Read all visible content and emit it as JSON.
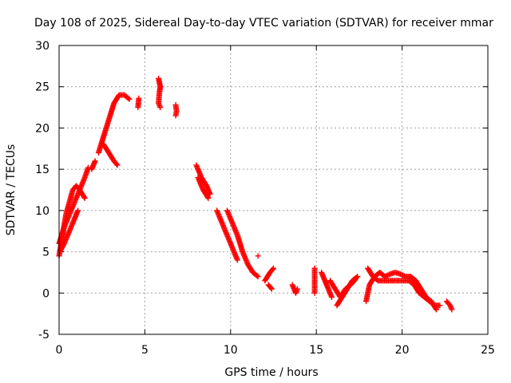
{
  "chart_data": {
    "type": "scatter",
    "title": "Day 108 of 2025, Sidereal Day-to-day VTEC variation (SDTVAR) for receiver mmar",
    "xlabel": "GPS time / hours",
    "ylabel": "SDTVAR / TECUs",
    "xlim": [
      0,
      25
    ],
    "ylim": [
      -5,
      30
    ],
    "xticks": [
      0,
      5,
      10,
      15,
      20,
      25
    ],
    "yticks": [
      -5,
      0,
      5,
      10,
      15,
      20,
      25,
      30
    ],
    "xtick_labels": [
      "0",
      "5",
      "10",
      "15",
      "20",
      "25"
    ],
    "ytick_labels": [
      "-5",
      "0",
      "5",
      "10",
      "15",
      "20",
      "25",
      "30"
    ],
    "grid": true,
    "marker": "+",
    "marker_color": "#ff0000",
    "series": [
      {
        "name": "SDTVAR",
        "segments": [
          [
            [
              0.0,
              4.5
            ],
            [
              0.2,
              7.0
            ],
            [
              0.4,
              9.5
            ],
            [
              0.6,
              11.0
            ],
            [
              0.8,
              12.5
            ],
            [
              1.0,
              13.0
            ],
            [
              1.2,
              12.5
            ],
            [
              1.5,
              11.5
            ]
          ],
          [
            [
              0.0,
              6.0
            ],
            [
              0.3,
              8.0
            ],
            [
              0.6,
              9.5
            ],
            [
              0.9,
              11.0
            ],
            [
              1.2,
              12.5
            ],
            [
              1.5,
              14.0
            ],
            [
              1.7,
              15.2
            ]
          ],
          [
            [
              0.05,
              5.0
            ],
            [
              0.3,
              6.0
            ],
            [
              0.6,
              7.5
            ],
            [
              0.9,
              9.0
            ],
            [
              1.1,
              10.0
            ]
          ],
          [
            [
              1.9,
              15.0
            ],
            [
              2.1,
              16.0
            ]
          ],
          [
            [
              2.3,
              17.0
            ],
            [
              2.6,
              19.0
            ],
            [
              2.9,
              21.0
            ],
            [
              3.2,
              23.0
            ],
            [
              3.5,
              24.0
            ],
            [
              3.8,
              24.0
            ],
            [
              4.1,
              23.5
            ]
          ],
          [
            [
              2.6,
              18.0
            ],
            [
              2.9,
              17.0
            ],
            [
              3.2,
              16.0
            ],
            [
              3.4,
              15.5
            ]
          ],
          [
            [
              4.6,
              22.5
            ],
            [
              4.65,
              23.6
            ]
          ],
          [
            [
              5.8,
              26.0
            ],
            [
              5.9,
              25.0
            ],
            [
              5.85,
              24.3
            ],
            [
              5.8,
              23.0
            ],
            [
              5.9,
              22.5
            ]
          ],
          [
            [
              6.8,
              22.8
            ],
            [
              6.85,
              22.0
            ],
            [
              6.8,
              21.5
            ]
          ],
          [
            [
              8.0,
              15.5
            ],
            [
              8.3,
              14.0
            ],
            [
              8.6,
              13.0
            ],
            [
              8.8,
              12.0
            ]
          ],
          [
            [
              8.1,
              14.0
            ],
            [
              8.4,
              12.5
            ],
            [
              8.7,
              11.5
            ]
          ],
          [
            [
              9.2,
              10.0
            ],
            [
              9.5,
              8.5
            ],
            [
              9.8,
              7.0
            ],
            [
              10.1,
              5.5
            ],
            [
              10.4,
              4.0
            ]
          ],
          [
            [
              9.8,
              10.0
            ],
            [
              10.1,
              8.5
            ],
            [
              10.4,
              7.0
            ],
            [
              10.7,
              5.0
            ],
            [
              11.0,
              3.5
            ],
            [
              11.3,
              2.5
            ],
            [
              11.6,
              2.0
            ]
          ],
          [
            [
              11.6,
              4.5
            ]
          ],
          [
            [
              12.0,
              1.5
            ],
            [
              12.3,
              2.5
            ],
            [
              12.5,
              3.0
            ]
          ],
          [
            [
              12.2,
              1.0
            ],
            [
              12.4,
              0.5
            ]
          ],
          [
            [
              13.6,
              1.0
            ],
            [
              13.8,
              0.0
            ],
            [
              13.9,
              0.5
            ]
          ],
          [
            [
              14.9,
              3.0
            ],
            [
              14.9,
              2.0
            ],
            [
              14.9,
              1.0
            ],
            [
              14.9,
              0.0
            ]
          ],
          [
            [
              15.3,
              2.5
            ],
            [
              15.5,
              1.5
            ],
            [
              15.7,
              0.5
            ],
            [
              15.9,
              -0.5
            ]
          ],
          [
            [
              15.8,
              1.5
            ],
            [
              16.1,
              0.5
            ],
            [
              16.4,
              -0.5
            ],
            [
              16.7,
              0.5
            ],
            [
              17.0,
              1.0
            ],
            [
              17.3,
              1.7
            ]
          ],
          [
            [
              16.2,
              -1.5
            ],
            [
              16.5,
              -0.5
            ],
            [
              16.8,
              0.5
            ],
            [
              17.1,
              1.5
            ],
            [
              17.4,
              2.0
            ]
          ],
          [
            [
              18.0,
              3.0
            ],
            [
              18.3,
              2.0
            ],
            [
              18.6,
              1.5
            ],
            [
              18.9,
              1.5
            ],
            [
              19.2,
              1.5
            ],
            [
              19.5,
              1.5
            ],
            [
              19.8,
              1.5
            ],
            [
              20.1,
              1.5
            ],
            [
              20.4,
              1.5
            ],
            [
              20.7,
              1.0
            ],
            [
              21.0,
              0.0
            ],
            [
              21.3,
              -0.5
            ],
            [
              21.6,
              -1.0
            ],
            [
              21.9,
              -1.5
            ],
            [
              22.2,
              -1.5
            ]
          ],
          [
            [
              17.9,
              -1.0
            ],
            [
              18.1,
              1.0
            ],
            [
              18.4,
              2.0
            ],
            [
              18.7,
              2.5
            ],
            [
              19.0,
              2.0
            ],
            [
              19.3,
              2.3
            ],
            [
              19.6,
              2.5
            ],
            [
              19.9,
              2.3
            ],
            [
              20.2,
              2.0
            ],
            [
              20.5,
              2.0
            ],
            [
              20.8,
              1.5
            ],
            [
              21.1,
              0.5
            ],
            [
              21.4,
              -0.5
            ],
            [
              21.7,
              -1.0
            ],
            [
              22.0,
              -2.0
            ]
          ],
          [
            [
              22.6,
              -1.0
            ],
            [
              22.8,
              -1.5
            ],
            [
              22.9,
              -2.0
            ]
          ]
        ]
      }
    ]
  }
}
